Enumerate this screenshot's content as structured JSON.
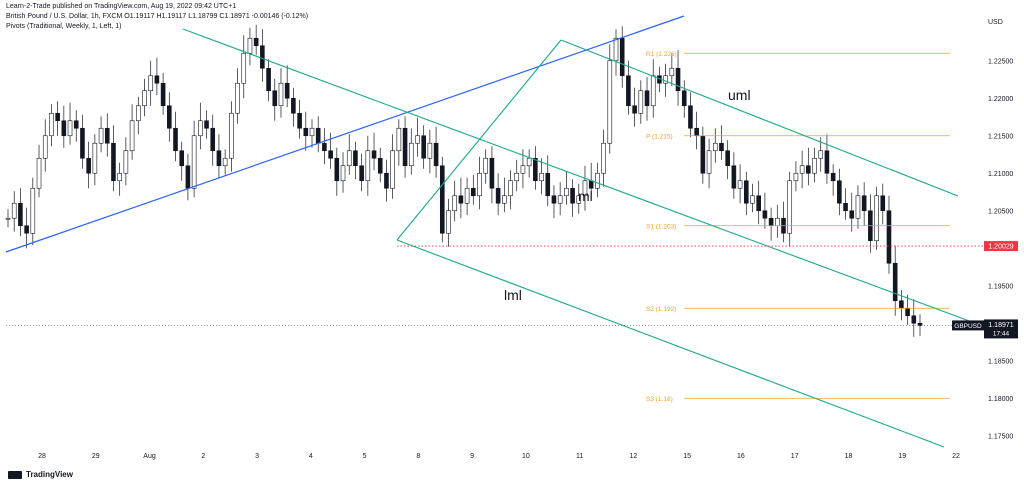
{
  "header": {
    "published": "Learn-2-Trade published on TradingView.com, Aug 19, 2022 09:42 UTC+1",
    "symbol_line": "British Pound / U.S. Dollar, 1h, FXCM   O1.19117  H1.19117  L1.18799  C1.18971  -0.00146 (-0.12%)",
    "indicator_line": "Pivots (Traditional, Weekly, 1, Left, 1)"
  },
  "brand": {
    "name": "TradingView",
    "icon": "tradingview-logo-icon"
  },
  "colors": {
    "channel": "#1aa88a",
    "trendline": "#2962ff",
    "pivot": "#f7a21b",
    "last_price_line": "#555555",
    "marker": "#f23645",
    "candle": "#131722"
  },
  "chart_data": {
    "type": "candlestick",
    "symbol": "GBPUSD",
    "timeframe": "1h",
    "currency_label": "USD",
    "y_ticks": [
      1.225,
      1.22,
      1.215,
      1.21,
      1.205,
      1.2,
      1.195,
      1.19,
      1.185,
      1.18,
      1.175
    ],
    "y_tick_labels": [
      "1.22500",
      "1.22000",
      "1.21500",
      "1.21000",
      "1.20500",
      "",
      "1.19500",
      "",
      "1.18500",
      "1.18000",
      "1.17500"
    ],
    "ylim": [
      1.1715,
      1.2315
    ],
    "x_labels": [
      "28",
      "29",
      "Aug",
      "2",
      "3",
      "4",
      "5",
      "8",
      "9",
      "10",
      "11",
      "12",
      "15",
      "16",
      "17",
      "18",
      "19",
      "22"
    ],
    "pivots": [
      {
        "label": "R1 (1.226)",
        "value": 1.226
      },
      {
        "label": "P (1.215)",
        "value": 1.215
      },
      {
        "label": "S1 (1.203)",
        "value": 1.203
      },
      {
        "label": "S2 (1.192)",
        "value": 1.192
      },
      {
        "label": "S3 (1.18)",
        "value": 1.18
      }
    ],
    "channel_labels": {
      "upper": "uml",
      "median": "ml",
      "lower": "lml"
    },
    "last_price": {
      "symbol": "GBPUSD",
      "value": "1.18971",
      "countdown": "17:44",
      "value_num": 1.18971
    },
    "marker_price": {
      "value": "1.20029",
      "value_num": 1.20029
    },
    "candles_close_path": [
      [
        0,
        1.204
      ],
      [
        1,
        1.206
      ],
      [
        2,
        1.203
      ],
      [
        3,
        1.202
      ],
      [
        4,
        1.208
      ],
      [
        5,
        1.212
      ],
      [
        6,
        1.215
      ],
      [
        7,
        1.218
      ],
      [
        8,
        1.217
      ],
      [
        9,
        1.215
      ],
      [
        10,
        1.217
      ],
      [
        11,
        1.216
      ],
      [
        12,
        1.212
      ],
      [
        13,
        1.21
      ],
      [
        14,
        1.214
      ],
      [
        15,
        1.216
      ],
      [
        16,
        1.214
      ],
      [
        17,
        1.209
      ],
      [
        18,
        1.21
      ],
      [
        19,
        1.213
      ],
      [
        20,
        1.217
      ],
      [
        21,
        1.219
      ],
      [
        22,
        1.221
      ],
      [
        23,
        1.223
      ],
      [
        24,
        1.222
      ],
      [
        25,
        1.219
      ],
      [
        26,
        1.216
      ],
      [
        27,
        1.213
      ],
      [
        28,
        1.211
      ],
      [
        29,
        1.208
      ],
      [
        30,
        1.215
      ],
      [
        31,
        1.217
      ],
      [
        32,
        1.216
      ],
      [
        33,
        1.213
      ],
      [
        34,
        1.211
      ],
      [
        35,
        1.212
      ],
      [
        36,
        1.218
      ],
      [
        37,
        1.222
      ],
      [
        38,
        1.226
      ],
      [
        39,
        1.228
      ],
      [
        40,
        1.227
      ],
      [
        41,
        1.224
      ],
      [
        42,
        1.221
      ],
      [
        43,
        1.219
      ],
      [
        44,
        1.222
      ],
      [
        45,
        1.22
      ],
      [
        46,
        1.218
      ],
      [
        47,
        1.216
      ],
      [
        48,
        1.215
      ],
      [
        49,
        1.216
      ],
      [
        50,
        1.214
      ],
      [
        51,
        1.213
      ],
      [
        52,
        1.212
      ],
      [
        53,
        1.209
      ],
      [
        54,
        1.211
      ],
      [
        55,
        1.213
      ],
      [
        56,
        1.211
      ],
      [
        57,
        1.209
      ],
      [
        58,
        1.213
      ],
      [
        59,
        1.212
      ],
      [
        60,
        1.21
      ],
      [
        61,
        1.208
      ],
      [
        62,
        1.213
      ],
      [
        63,
        1.216
      ],
      [
        64,
        1.211
      ],
      [
        65,
        1.214
      ],
      [
        66,
        1.215
      ],
      [
        67,
        1.212
      ],
      [
        68,
        1.214
      ],
      [
        69,
        1.211
      ],
      [
        70,
        1.202
      ],
      [
        71,
        1.205
      ],
      [
        72,
        1.207
      ],
      [
        73,
        1.206
      ],
      [
        74,
        1.208
      ],
      [
        75,
        1.207
      ],
      [
        76,
        1.21
      ],
      [
        77,
        1.212
      ],
      [
        78,
        1.208
      ],
      [
        79,
        1.206
      ],
      [
        80,
        1.207
      ],
      [
        81,
        1.209
      ],
      [
        82,
        1.21
      ],
      [
        83,
        1.211
      ],
      [
        84,
        1.212
      ],
      [
        85,
        1.209
      ],
      [
        86,
        1.21
      ],
      [
        87,
        1.207
      ],
      [
        88,
        1.206
      ],
      [
        89,
        1.207
      ],
      [
        90,
        1.208
      ],
      [
        91,
        1.206
      ],
      [
        92,
        1.207
      ],
      [
        93,
        1.209
      ],
      [
        94,
        1.208
      ],
      [
        95,
        1.21
      ],
      [
        96,
        1.214
      ],
      [
        97,
        1.225
      ],
      [
        98,
        1.228
      ],
      [
        99,
        1.223
      ],
      [
        100,
        1.219
      ],
      [
        101,
        1.218
      ],
      [
        102,
        1.221
      ],
      [
        103,
        1.219
      ],
      [
        104,
        1.223
      ],
      [
        105,
        1.222
      ],
      [
        106,
        1.223
      ],
      [
        107,
        1.224
      ],
      [
        108,
        1.221
      ],
      [
        109,
        1.219
      ],
      [
        110,
        1.216
      ],
      [
        111,
        1.215
      ],
      [
        112,
        1.21
      ],
      [
        113,
        1.213
      ],
      [
        114,
        1.214
      ],
      [
        115,
        1.213
      ],
      [
        116,
        1.211
      ],
      [
        117,
        1.208
      ],
      [
        118,
        1.209
      ],
      [
        119,
        1.206
      ],
      [
        120,
        1.207
      ],
      [
        121,
        1.205
      ],
      [
        122,
        1.204
      ],
      [
        123,
        1.203
      ],
      [
        124,
        1.204
      ],
      [
        125,
        1.202
      ],
      [
        126,
        1.209
      ],
      [
        127,
        1.21
      ],
      [
        128,
        1.211
      ],
      [
        129,
        1.21
      ],
      [
        130,
        1.212
      ],
      [
        131,
        1.213
      ],
      [
        132,
        1.21
      ],
      [
        133,
        1.209
      ],
      [
        134,
        1.206
      ],
      [
        135,
        1.205
      ],
      [
        136,
        1.204
      ],
      [
        137,
        1.207
      ],
      [
        138,
        1.205
      ],
      [
        139,
        1.201
      ],
      [
        140,
        1.207
      ],
      [
        141,
        1.205
      ],
      [
        142,
        1.198
      ],
      [
        143,
        1.193
      ],
      [
        144,
        1.192
      ],
      [
        145,
        1.191
      ],
      [
        146,
        1.19
      ],
      [
        147,
        1.1897
      ]
    ]
  }
}
